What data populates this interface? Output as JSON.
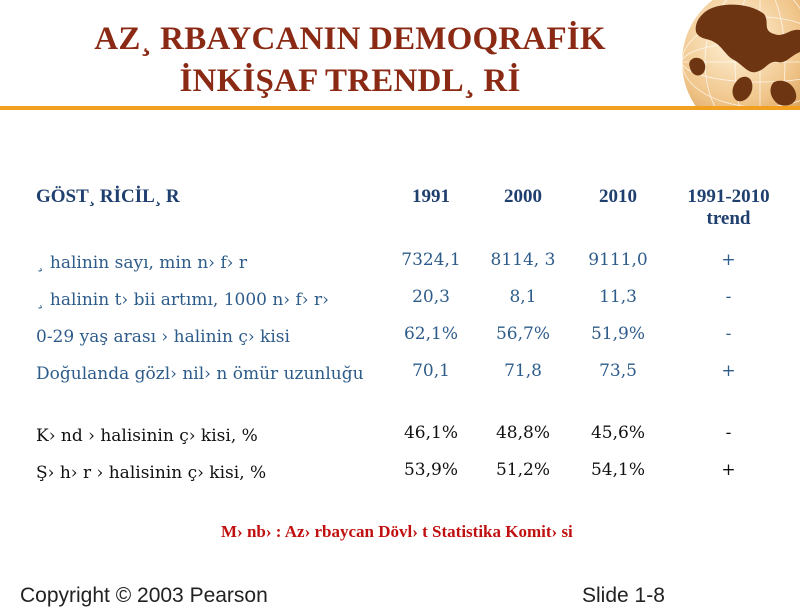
{
  "slide": {
    "title_line1": "AZ¸ RBAYCANIN DEMOQRAFİK",
    "title_line2": "İNKİŞAF TRENDL¸ Rİ",
    "colors": {
      "title": "#8a2a14",
      "rule": "#f2a020",
      "header": "#1f3f6e",
      "text_blue": "#2e5c8a",
      "source": "#c01010"
    }
  },
  "table": {
    "headers": [
      "GÖST¸ RİCİL¸ R",
      "1991",
      "2000",
      "2010",
      "1991-2010 trend"
    ],
    "rows": [
      {
        "label": "¸ halinin sayı, min n› f› r",
        "v1991": "7324,1",
        "v2000": "8114, 3",
        "v2010": "9111,0",
        "trend": "+"
      },
      {
        "label": "¸ halinin t› bii artımı, 1000 n› f› r›",
        "v1991": "20,3",
        "v2000": "8,1",
        "v2010": "11,3",
        "trend": "-"
      },
      {
        "label": "0-29 yaş arası › halinin ç› kisi",
        "v1991": "62,1%",
        "v2000": "56,7%",
        "v2010": "51,9%",
        "trend": "-"
      },
      {
        "label": "Doğulanda gözl› nil› n ömür uzunluğu",
        "v1991": "70,1",
        "v2000": "71,8",
        "v2010": "73,5",
        "trend": "+"
      },
      {
        "label": "K› nd › halisinin ç› kisi, %",
        "v1991": "46,1%",
        "v2000": "48,8%",
        "v2010": "45,6%",
        "trend": "-"
      },
      {
        "label": "Ş› h› r › halisinin ç› kisi, %",
        "v1991": "53,9%",
        "v2000": "51,2%",
        "v2010": "54,1%",
        "trend": "+"
      }
    ]
  },
  "source": "M› nb› : Az› rbaycan Dövl› t Statistika Komit› si",
  "footer": {
    "left": "Copyright © 2003 Pearson",
    "right": "Slide 1-8"
  }
}
